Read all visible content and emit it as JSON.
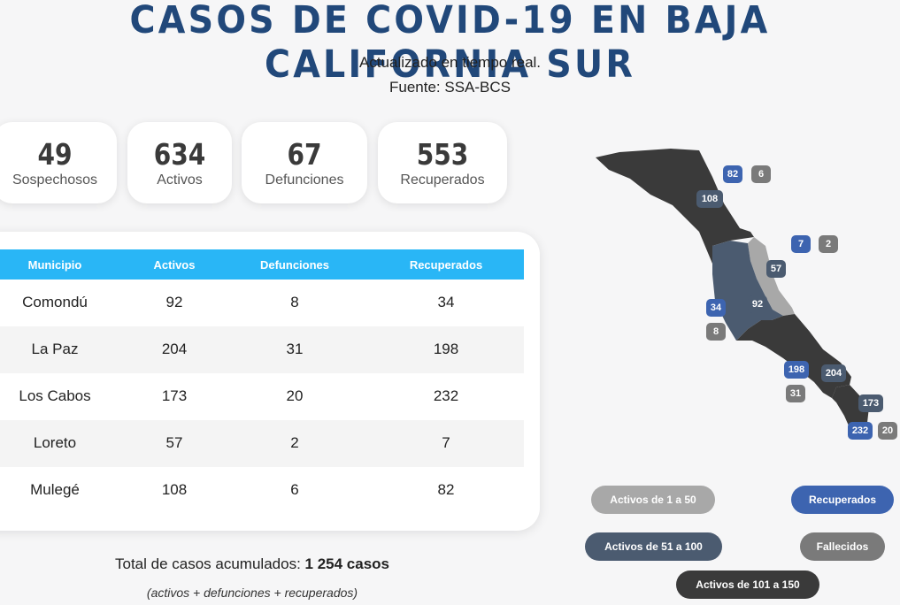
{
  "header": {
    "title": "CASOS DE COVID-19 EN BAJA CALIFORNIA SUR",
    "subtitle": "Actualizado en tiempo real.",
    "source": "Fuente: SSA-BCS"
  },
  "stats": [
    {
      "value": "49",
      "label": "Sospechosos"
    },
    {
      "value": "634",
      "label": "Activos"
    },
    {
      "value": "67",
      "label": "Defunciones"
    },
    {
      "value": "553",
      "label": "Recuperados"
    }
  ],
  "table": {
    "headers": [
      "Municipio",
      "Activos",
      "Defunciones",
      "Recuperados"
    ],
    "rows": [
      [
        "Comondú",
        "92",
        "8",
        "34"
      ],
      [
        "La Paz",
        "204",
        "31",
        "198"
      ],
      [
        "Los Cabos",
        "173",
        "20",
        "232"
      ],
      [
        "Loreto",
        "57",
        "2",
        "7"
      ],
      [
        "Mulegé",
        "108",
        "6",
        "82"
      ]
    ]
  },
  "footer": {
    "total_label": "Total de casos acumulados: ",
    "total_value": "1 254 casos",
    "note": "(activos + defunciones + recuperados)"
  },
  "map": {
    "badges": {
      "mulege_rec": "82",
      "mulege_def": "6",
      "mulege_act": "108",
      "loreto_rec": "7",
      "loreto_def": "2",
      "loreto_act": "57",
      "comondu_rec": "34",
      "comondu_def": "8",
      "comondu_act": "92",
      "lapaz_rec": "198",
      "lapaz_def": "31",
      "lapaz_act": "204",
      "loscabos_act": "173",
      "loscabos_rec": "232",
      "loscabos_def": "20"
    }
  },
  "legend": {
    "low": "Activos de 1 a 50",
    "mid": "Activos de 51 a 100",
    "high": "Activos de 101 a 150",
    "recovered": "Recuperados",
    "deceased": "Fallecidos"
  },
  "colors": {
    "title": "#21487a",
    "table_header": "#29b6f6",
    "recovered": "#3d64b0",
    "deceased": "#7a7a7a",
    "active_low": "#a8a8a8",
    "active_mid": "#4b5b70",
    "active_high": "#3a3a3a"
  }
}
